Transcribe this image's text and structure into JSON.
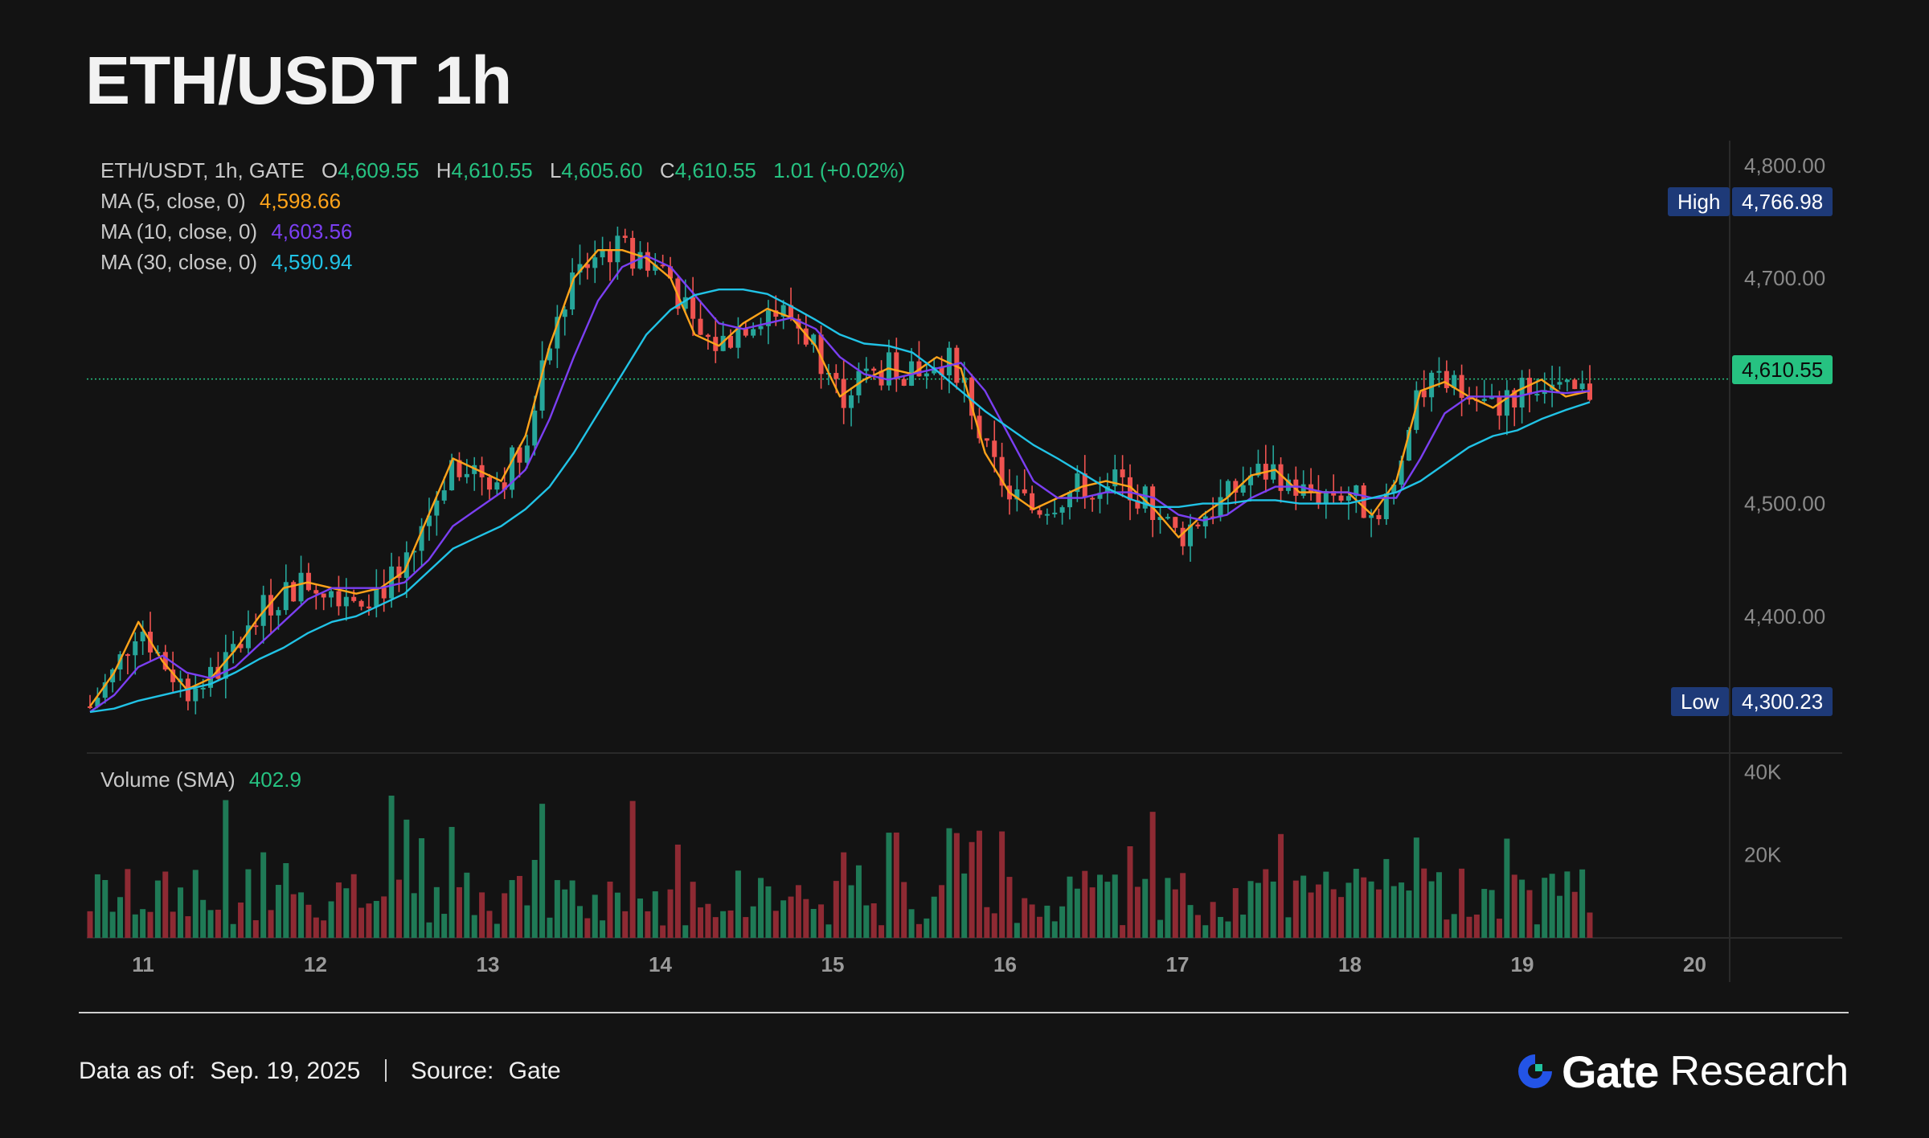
{
  "title": "ETH/USDT 1h",
  "legend": {
    "symbol": "ETH/USDT, 1h, GATE",
    "o_label": "O",
    "o_value": "4,609.55",
    "h_label": "H",
    "h_value": "4,610.55",
    "l_label": "L",
    "l_value": "4,605.60",
    "c_label": "C",
    "c_value": "4,610.55",
    "change": "1.01 (+0.02%)",
    "ma5_label": "MA (5, close, 0)",
    "ma5_value": "4,598.66",
    "ma10_label": "MA (10, close, 0)",
    "ma10_value": "4,603.56",
    "ma30_label": "MA (30, close, 0)",
    "ma30_value": "4,590.94"
  },
  "volume_legend": {
    "label": "Volume (SMA)",
    "value": "402.9"
  },
  "price_tags": {
    "high_label": "High",
    "high_value": "4,766.98",
    "low_label": "Low",
    "low_value": "4,300.23",
    "last_value": "4,610.55"
  },
  "footer": {
    "date_label": "Data as of:",
    "date_value": "Sep. 19, 2025",
    "source_label": "Source:",
    "source_value": "Gate",
    "brand_gate": "Gate",
    "brand_research": "Research"
  },
  "colors": {
    "up": "#26a69a",
    "down": "#ef5350",
    "ma5": "#ffa31a",
    "ma10": "#7b3ff2",
    "ma30": "#21c3e6",
    "background": "#131313",
    "tag": "#1e3a78"
  },
  "chart_data": {
    "type": "candlestick",
    "x_tick_labels": [
      "11",
      "12",
      "13",
      "14",
      "15",
      "16",
      "17",
      "18",
      "19",
      "20"
    ],
    "y_tick_labels": [
      "4,800.00",
      "4,700.00",
      "4,500.00",
      "4,400.00"
    ],
    "ylim": [
      4280,
      4815
    ],
    "volume_tick_labels": [
      "40K",
      "20K"
    ],
    "volume_ylim": [
      0,
      42000
    ],
    "ma_series": [
      {
        "name": "MA (5, close, 0)",
        "color": "#ffa31a",
        "values": [
          4320,
          4350,
          4395,
          4360,
          4335,
          4345,
          4370,
          4400,
          4425,
          4430,
          4425,
          4420,
          4425,
          4440,
          4490,
          4540,
          4530,
          4520,
          4560,
          4640,
          4700,
          4725,
          4725,
          4718,
          4700,
          4650,
          4640,
          4660,
          4673,
          4665,
          4640,
          4595,
          4610,
          4620,
          4615,
          4630,
          4620,
          4545,
          4510,
          4495,
          4505,
          4515,
          4520,
          4515,
          4495,
          4470,
          4490,
          4505,
          4525,
          4530,
          4510,
          4510,
          4510,
          4490,
          4520,
          4600,
          4608,
          4595,
          4585,
          4600,
          4610,
          4595,
          4600
        ]
      },
      {
        "name": "MA (10, close, 0)",
        "color": "#7b3ff2",
        "values": [
          4315,
          4330,
          4355,
          4365,
          4350,
          4345,
          4355,
          4375,
          4395,
          4415,
          4425,
          4425,
          4425,
          4430,
          4450,
          4480,
          4495,
          4510,
          4530,
          4575,
          4630,
          4680,
          4710,
          4720,
          4710,
          4685,
          4660,
          4655,
          4660,
          4665,
          4655,
          4630,
          4615,
          4610,
          4615,
          4620,
          4625,
          4600,
          4560,
          4520,
          4505,
          4505,
          4510,
          4510,
          4505,
          4490,
          4485,
          4490,
          4505,
          4515,
          4515,
          4510,
          4510,
          4505,
          4505,
          4540,
          4580,
          4595,
          4595,
          4595,
          4600,
          4598,
          4600
        ]
      },
      {
        "name": "MA (30, close, 0)",
        "color": "#21c3e6",
        "values": [
          4315,
          4318,
          4325,
          4330,
          4335,
          4340,
          4350,
          4362,
          4372,
          4385,
          4395,
          4400,
          4410,
          4420,
          4440,
          4460,
          4470,
          4480,
          4495,
          4515,
          4545,
          4580,
          4615,
          4650,
          4672,
          4685,
          4690,
          4690,
          4686,
          4675,
          4663,
          4650,
          4642,
          4640,
          4634,
          4618,
          4600,
          4582,
          4567,
          4552,
          4540,
          4527,
          4514,
          4504,
          4497,
          4497,
          4500,
          4500,
          4503,
          4503,
          4500,
          4500,
          4500,
          4505,
          4510,
          4520,
          4535,
          4550,
          4560,
          4565,
          4575,
          4583,
          4590
        ]
      }
    ],
    "ma_x_start": 0.0,
    "ma_x_end": 8.4,
    "last_price": 4610.55,
    "high": 4766.98,
    "low": 4300.23,
    "num_candles": 200,
    "seed": 7
  }
}
